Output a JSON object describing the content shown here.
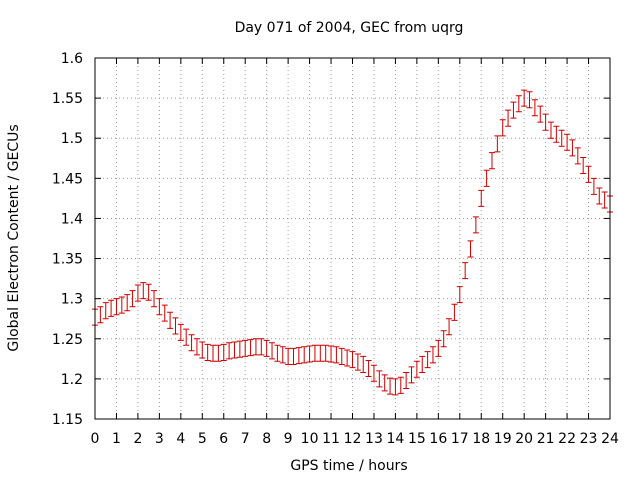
{
  "chart_data": {
    "type": "scatter",
    "title": "Day 071 of 2004, GEC from uqrg",
    "xlabel": "GPS time / hours",
    "ylabel": "Global Electron Content / GECUs",
    "xlim": [
      0,
      24
    ],
    "ylim": [
      1.15,
      1.6
    ],
    "xticks": [
      0,
      1,
      2,
      3,
      4,
      5,
      6,
      7,
      8,
      9,
      10,
      11,
      12,
      13,
      14,
      15,
      16,
      17,
      18,
      19,
      20,
      21,
      22,
      23,
      24
    ],
    "yticks": [
      "1.15",
      "1.2",
      "1.25",
      "1.3",
      "1.35",
      "1.4",
      "1.45",
      "1.5",
      "1.55",
      "1.6"
    ],
    "grid": true,
    "error_bar_halfwidth": 0.01,
    "color": "#cc0000",
    "series": [
      {
        "x": [
          0,
          0.25,
          0.5,
          0.75,
          1,
          1.25,
          1.5,
          1.75,
          2,
          2.25,
          2.5,
          2.75,
          3,
          3.25,
          3.5,
          3.75,
          4,
          4.25,
          4.5,
          4.75,
          5,
          5.25,
          5.5,
          5.75,
          6,
          6.25,
          6.5,
          6.75,
          7,
          7.25,
          7.5,
          7.75,
          8,
          8.25,
          8.5,
          8.75,
          9,
          9.25,
          9.5,
          9.75,
          10,
          10.25,
          10.5,
          10.75,
          11,
          11.25,
          11.5,
          11.75,
          12,
          12.25,
          12.5,
          12.75,
          13,
          13.25,
          13.5,
          13.75,
          14,
          14.25,
          14.5,
          14.75,
          15,
          15.25,
          15.5,
          15.75,
          16,
          16.25,
          16.5,
          16.75,
          17,
          17.25,
          17.5,
          17.75,
          18,
          18.25,
          18.5,
          18.75,
          19,
          19.25,
          19.5,
          19.75,
          20,
          20.25,
          20.5,
          20.75,
          21,
          21.25,
          21.5,
          21.75,
          22,
          22.25,
          22.5,
          22.75,
          23,
          23.25,
          23.5,
          23.75,
          24
        ],
        "y": [
          1.277,
          1.28,
          1.285,
          1.288,
          1.29,
          1.292,
          1.295,
          1.3,
          1.307,
          1.31,
          1.308,
          1.3,
          1.29,
          1.282,
          1.273,
          1.266,
          1.258,
          1.252,
          1.245,
          1.24,
          1.236,
          1.233,
          1.232,
          1.232,
          1.233,
          1.235,
          1.236,
          1.237,
          1.238,
          1.239,
          1.24,
          1.24,
          1.238,
          1.235,
          1.232,
          1.23,
          1.228,
          1.228,
          1.229,
          1.23,
          1.231,
          1.232,
          1.232,
          1.232,
          1.231,
          1.23,
          1.228,
          1.226,
          1.224,
          1.221,
          1.218,
          1.213,
          1.207,
          1.2,
          1.195,
          1.191,
          1.19,
          1.192,
          1.198,
          1.205,
          1.212,
          1.218,
          1.224,
          1.23,
          1.238,
          1.25,
          1.265,
          1.283,
          1.305,
          1.335,
          1.362,
          1.392,
          1.425,
          1.45,
          1.472,
          1.493,
          1.513,
          1.525,
          1.535,
          1.543,
          1.55,
          1.548,
          1.538,
          1.53,
          1.52,
          1.51,
          1.505,
          1.5,
          1.495,
          1.488,
          1.478,
          1.466,
          1.455,
          1.44,
          1.428,
          1.423,
          1.418
        ]
      }
    ]
  }
}
